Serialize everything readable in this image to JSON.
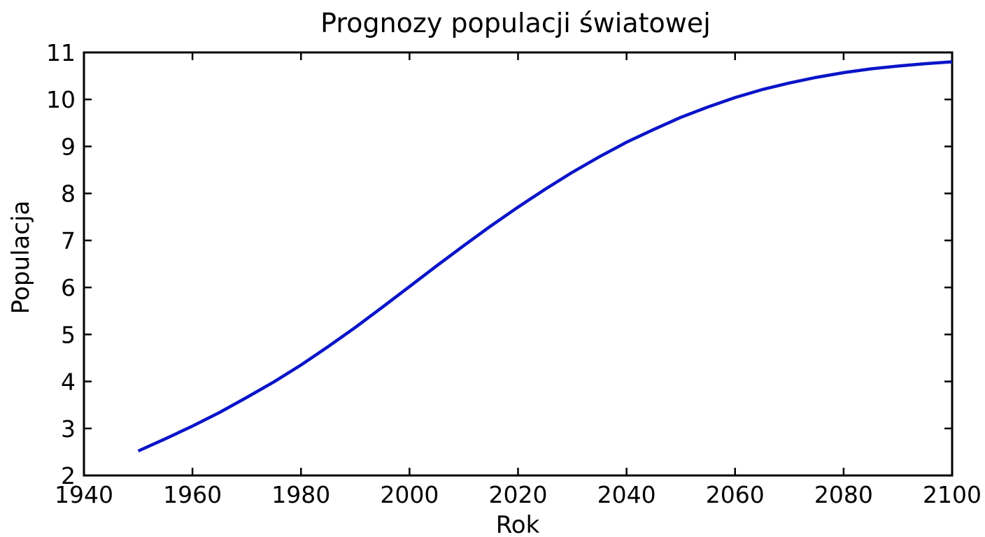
{
  "chart_data": {
    "type": "line",
    "title": "Prognozy populacji światowej",
    "xlabel": "Rok",
    "ylabel": "Populacja",
    "xlim": [
      1940,
      2100
    ],
    "ylim": [
      2,
      11
    ],
    "xticks": [
      "1940",
      "1960",
      "1980",
      "2000",
      "2020",
      "2040",
      "2060",
      "2080",
      "2100"
    ],
    "yticks": [
      "2",
      "3",
      "4",
      "5",
      "6",
      "7",
      "8",
      "9",
      "10",
      "11"
    ],
    "grid": false,
    "colors": {
      "series": "#0a14c8",
      "axis": "#000000",
      "background": "#ffffff"
    },
    "series": [
      {
        "x": [
          1950,
          1955,
          1960,
          1965,
          1970,
          1975,
          1980,
          1985,
          1990,
          1995,
          2000,
          2005,
          2010,
          2015,
          2020,
          2025,
          2030,
          2035,
          2040,
          2045,
          2050,
          2055,
          2060,
          2065,
          2070,
          2075,
          2080,
          2085,
          2090,
          2095,
          2100
        ],
        "y": [
          2.52,
          2.78,
          3.05,
          3.34,
          3.66,
          3.99,
          4.35,
          4.74,
          5.15,
          5.58,
          6.02,
          6.46,
          6.89,
          7.31,
          7.71,
          8.09,
          8.45,
          8.78,
          9.09,
          9.36,
          9.62,
          9.84,
          10.04,
          10.21,
          10.35,
          10.47,
          10.57,
          10.65,
          10.71,
          10.76,
          10.8
        ]
      }
    ]
  }
}
